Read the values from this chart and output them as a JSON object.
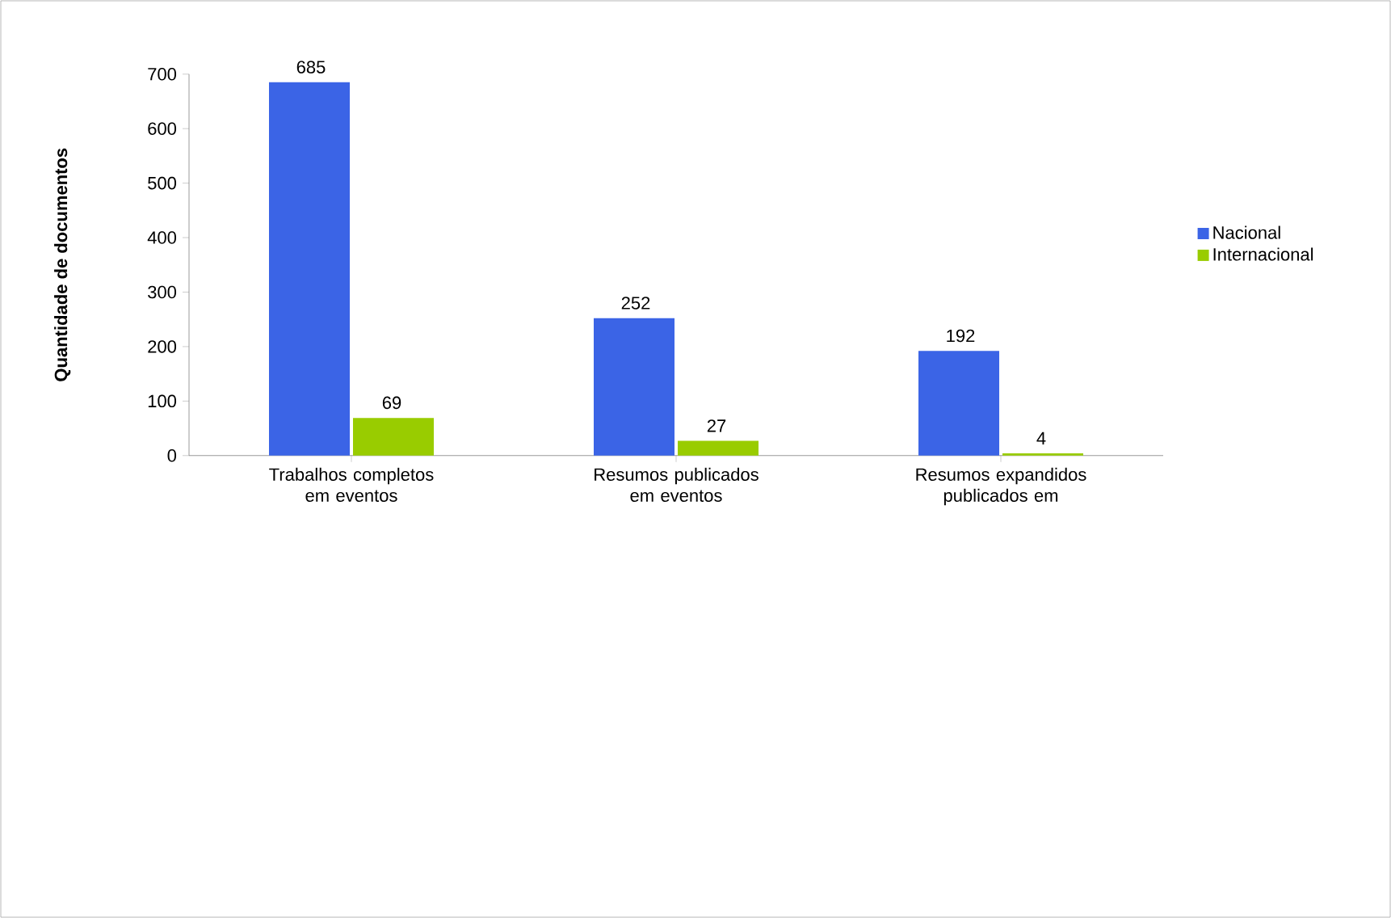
{
  "chart_data": {
    "type": "bar",
    "ylabel": "Quantidade de documentos",
    "categories": [
      "Trabalhos completos em eventos",
      "Resumos publicados em eventos",
      "Resumos expandidos publicados em"
    ],
    "series": [
      {
        "name": "Nacional",
        "color": "#3b64e6",
        "values": [
          685,
          252,
          192
        ]
      },
      {
        "name": "Internacional",
        "color": "#99cc00",
        "values": [
          69,
          27,
          4
        ]
      }
    ],
    "ylim": [
      0,
      700
    ],
    "yticks": [
      0,
      100,
      200,
      300,
      400,
      500,
      600,
      700
    ],
    "data_labels": true,
    "legend": "right",
    "grid": false
  }
}
